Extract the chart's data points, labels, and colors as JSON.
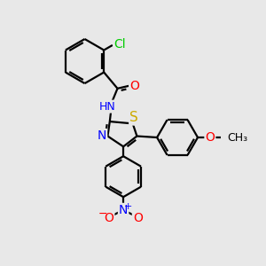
{
  "bg_color": "#e8e8e8",
  "bond_color": "#000000",
  "bond_width": 1.6,
  "atom_colors": {
    "C": "#000000",
    "N": "#0000ff",
    "O": "#ff0000",
    "S": "#ccaa00",
    "Cl": "#00cc00",
    "H": "#0000cc"
  },
  "font_size": 9,
  "fig_size": [
    3.0,
    3.0
  ],
  "dpi": 100
}
